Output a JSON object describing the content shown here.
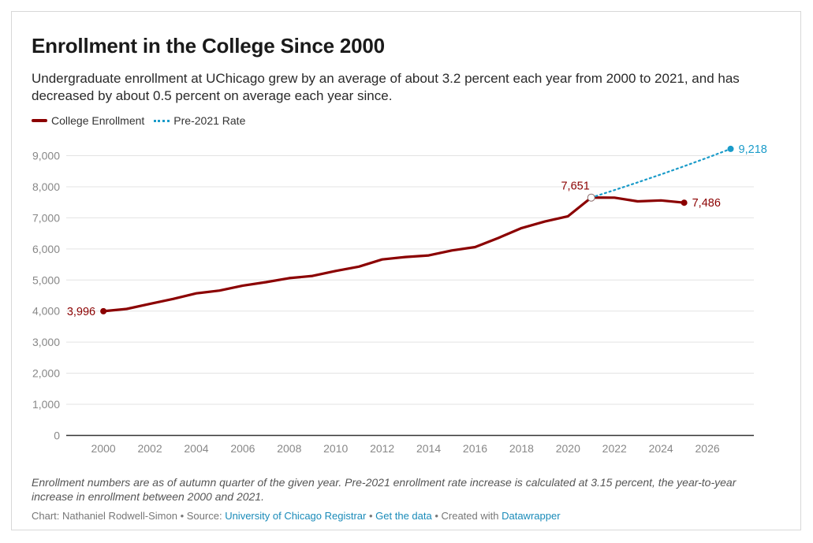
{
  "title": "Enrollment in the College Since 2000",
  "subtitle": "Undergraduate enrollment at UChicago grew by an average of about 3.2 percent each year from 2000 to 2021, and has decreased by about 0.5 percent on average each year since.",
  "legend": [
    {
      "label": "College Enrollment",
      "color": "#8b0000",
      "style": "solid"
    },
    {
      "label": "Pre-2021 Rate",
      "color": "#1a9bc9",
      "style": "dotted"
    }
  ],
  "notes": "Enrollment numbers are as of autumn quarter of the given year. Pre-2021 enrollment rate increase is calculated at 3.15 percent, the year-to-year increase in enrollment between 2000 and 2021.",
  "footer": {
    "chart_by": "Chart: Nathaniel Rodwell-Simon",
    "sep1": " • Source: ",
    "source": "University of Chicago Registrar",
    "sep2": " • ",
    "get_data": "Get the data",
    "sep3": " • Created with ",
    "tool": "Datawrapper"
  },
  "chart_data": {
    "type": "line",
    "title": "Enrollment in the College Since 2000",
    "xlim": [
      1998.4,
      2028
    ],
    "ylim": [
      0,
      9000
    ],
    "x_ticks": [
      2000,
      2002,
      2004,
      2006,
      2008,
      2010,
      2012,
      2014,
      2016,
      2018,
      2020,
      2022,
      2024,
      2026
    ],
    "y_ticks": [
      0,
      1000,
      2000,
      3000,
      4000,
      5000,
      6000,
      7000,
      8000,
      9000
    ],
    "y_tick_labels": [
      "0",
      "1,000",
      "2,000",
      "3,000",
      "4,000",
      "5,000",
      "6,000",
      "7,000",
      "8,000",
      "9,000"
    ],
    "grid": "horizontal",
    "legend_position": "top-left",
    "series": [
      {
        "name": "College Enrollment",
        "color": "#8b0000",
        "style": "solid",
        "x": [
          2000,
          2001,
          2002,
          2003,
          2004,
          2005,
          2006,
          2007,
          2008,
          2009,
          2010,
          2011,
          2012,
          2013,
          2014,
          2015,
          2016,
          2017,
          2018,
          2019,
          2020,
          2021,
          2022,
          2023,
          2024,
          2025
        ],
        "y": [
          3996,
          4070,
          4230,
          4390,
          4570,
          4660,
          4820,
          4930,
          5060,
          5130,
          5290,
          5430,
          5660,
          5740,
          5790,
          5950,
          6060,
          6350,
          6670,
          6880,
          7050,
          7651,
          7650,
          7530,
          7560,
          7486
        ]
      },
      {
        "name": "Pre-2021 Rate",
        "color": "#1a9bc9",
        "style": "dotted",
        "x": [
          2021,
          2022,
          2023,
          2024,
          2025,
          2026,
          2027
        ],
        "y": [
          7651,
          7892,
          8140,
          8397,
          8661,
          8934,
          9218
        ]
      }
    ],
    "annotations": [
      {
        "text": "3,996",
        "x": 2000,
        "y": 3996,
        "color": "#8b0000",
        "side": "left"
      },
      {
        "text": "7,651",
        "x": 2021,
        "y": 7651,
        "color": "#8b0000",
        "side": "top"
      },
      {
        "text": "7,486",
        "x": 2025,
        "y": 7486,
        "color": "#8b0000",
        "side": "right"
      },
      {
        "text": "9,218",
        "x": 2027,
        "y": 9218,
        "color": "#1a9bc9",
        "side": "right"
      }
    ]
  }
}
